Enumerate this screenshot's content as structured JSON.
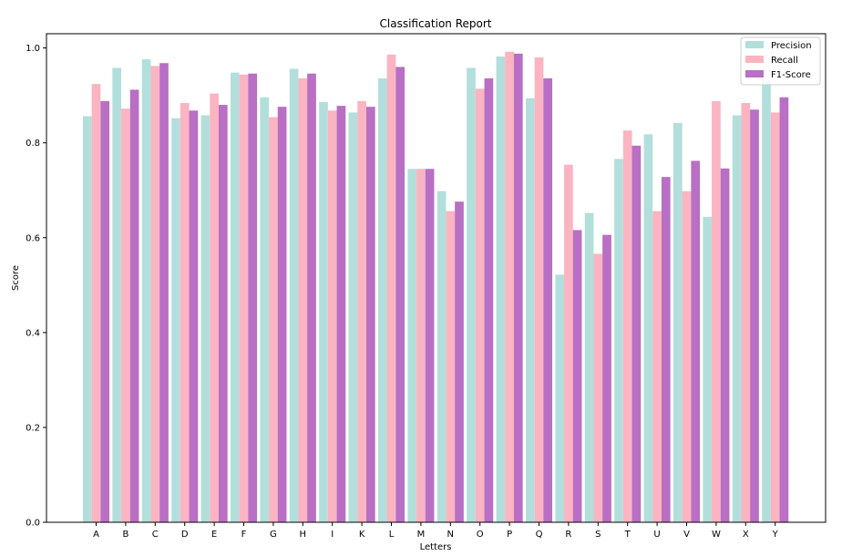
{
  "chart_data": {
    "type": "bar",
    "title": "Classification Report",
    "xlabel": "Letters",
    "ylabel": "Score",
    "ylim": [
      0,
      1.03
    ],
    "yticks": [
      "0.0",
      "0.2",
      "0.4",
      "0.6",
      "0.8",
      "1.0"
    ],
    "ytick_values": [
      0,
      0.2,
      0.4,
      0.6,
      0.8,
      1.0
    ],
    "grid": false,
    "legend_position": "top-right",
    "categories": [
      "A",
      "B",
      "C",
      "D",
      "E",
      "F",
      "G",
      "H",
      "I",
      "K",
      "L",
      "M",
      "N",
      "O",
      "P",
      "Q",
      "R",
      "S",
      "T",
      "U",
      "V",
      "W",
      "X",
      "Y"
    ],
    "series": [
      {
        "name": "Precision",
        "color": "#b2dfdb",
        "values": [
          0.856,
          0.958,
          0.976,
          0.852,
          0.858,
          0.948,
          0.896,
          0.956,
          0.886,
          0.864,
          0.936,
          0.745,
          0.698,
          0.958,
          0.982,
          0.894,
          0.522,
          0.652,
          0.766,
          0.818,
          0.842,
          0.644,
          0.858,
          0.932
        ]
      },
      {
        "name": "Recall",
        "color": "#fbb4c1",
        "values": [
          0.924,
          0.872,
          0.962,
          0.884,
          0.904,
          0.944,
          0.854,
          0.936,
          0.868,
          0.888,
          0.986,
          0.745,
          0.656,
          0.914,
          0.992,
          0.98,
          0.754,
          0.566,
          0.826,
          0.656,
          0.698,
          0.888,
          0.884,
          0.864
        ]
      },
      {
        "name": "F1-Score",
        "color": "#b86fc4",
        "values": [
          0.888,
          0.912,
          0.968,
          0.868,
          0.88,
          0.946,
          0.876,
          0.946,
          0.878,
          0.876,
          0.96,
          0.745,
          0.676,
          0.936,
          0.988,
          0.936,
          0.616,
          0.606,
          0.794,
          0.728,
          0.762,
          0.746,
          0.87,
          0.896
        ]
      }
    ]
  }
}
